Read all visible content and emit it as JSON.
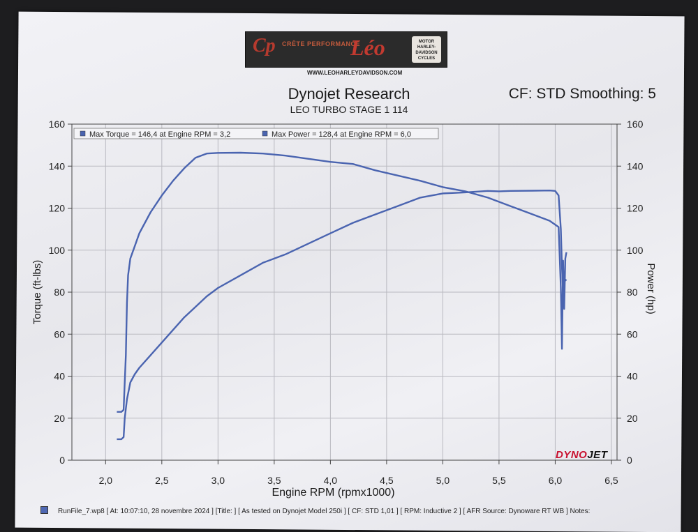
{
  "header": {
    "banner_left": "CRÊTE PERFORMANCE",
    "banner_brand": "Léo",
    "banner_right": "MOTOR HARLEY-DAVIDSON CYCLES",
    "website": "WWW.LEOHARLEYDAVIDSON.COM",
    "title": "Dynojet Research",
    "subtitle": "LEO TURBO STAGE 1 114",
    "settings": "CF: STD Smoothing: 5"
  },
  "logo_text": {
    "dyno": "DYNO",
    "jet": "JET"
  },
  "footer": "RunFile_7.wp8 [ At: 10:07:10, 28 novembre 2024 ] [Title: ] [ As tested on Dynojet Model 250i ] [ CF: STD 1,01 ] [ RPM: Inductive 2 ] [ AFR Source: Dynoware RT WB ] Notes:",
  "colors": {
    "series": "#4a64b0",
    "grid": "#b9b9c0",
    "brand_red": "#c8102e"
  },
  "chart_data": {
    "type": "line",
    "xlabel": "Engine RPM (rpmx1000)",
    "ylabel_left": "Torque (ft-lbs)",
    "ylabel_right": "Power (hp)",
    "xlim": [
      1.7,
      6.55
    ],
    "ylim": [
      0,
      160
    ],
    "x_ticks": [
      "2,0",
      "2,5",
      "3,0",
      "3,5",
      "4,0",
      "4,5",
      "5,0",
      "5,5",
      "6,0",
      "6,5"
    ],
    "y_ticks_left": [
      "0",
      "20",
      "40",
      "60",
      "80",
      "100",
      "120",
      "140",
      "160"
    ],
    "y_ticks_right": [
      "0",
      "20",
      "40",
      "60",
      "80",
      "100",
      "120",
      "140",
      "160"
    ],
    "grid": true,
    "legend": [
      "Max Torque = 146,4 at Engine RPM = 3,2",
      "Max Power = 128,4 at Engine RPM = 6,0"
    ],
    "series": [
      {
        "name": "Torque",
        "x": [
          2.1,
          2.14,
          2.16,
          2.18,
          2.19,
          2.2,
          2.22,
          2.26,
          2.3,
          2.4,
          2.5,
          2.6,
          2.7,
          2.8,
          2.9,
          3.0,
          3.2,
          3.4,
          3.6,
          3.8,
          4.0,
          4.2,
          4.4,
          4.6,
          4.8,
          5.0,
          5.2,
          5.4,
          5.6,
          5.8,
          5.95,
          6.03,
          6.05,
          6.06,
          6.07,
          6.08,
          6.09,
          6.1
        ],
        "y": [
          23,
          23,
          24,
          50,
          75,
          88,
          96,
          102,
          108,
          118,
          126,
          133,
          139,
          144,
          146,
          146.3,
          146.4,
          146,
          145,
          143.5,
          142,
          141,
          138,
          135.5,
          133,
          130,
          128,
          125,
          121,
          117,
          114,
          111,
          82,
          53,
          95,
          72,
          96,
          99
        ]
      },
      {
        "name": "Power",
        "x": [
          2.1,
          2.14,
          2.16,
          2.17,
          2.19,
          2.22,
          2.26,
          2.3,
          2.4,
          2.5,
          2.6,
          2.7,
          2.8,
          2.9,
          3.0,
          3.2,
          3.4,
          3.6,
          3.8,
          4.0,
          4.2,
          4.4,
          4.6,
          4.8,
          5.0,
          5.2,
          5.4,
          5.5,
          5.6,
          5.8,
          5.95,
          6.0,
          6.03,
          6.05,
          6.06,
          6.07,
          6.08,
          6.1
        ],
        "y": [
          10,
          10,
          11,
          20,
          29,
          37,
          41,
          44,
          50,
          56,
          62,
          68,
          73,
          78,
          82,
          88,
          94,
          98,
          103,
          108,
          113,
          117,
          121,
          125,
          127,
          127.5,
          128.2,
          128,
          128.2,
          128.3,
          128.4,
          128.2,
          126,
          110,
          92,
          80,
          85,
          86
        ]
      }
    ]
  }
}
